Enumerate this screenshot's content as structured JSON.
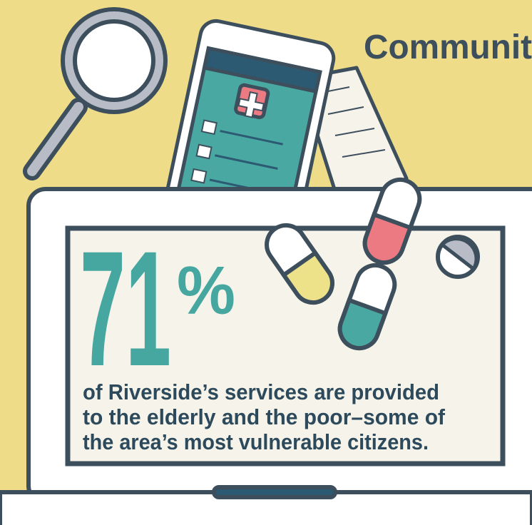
{
  "header": {
    "title": "Communit"
  },
  "stat": {
    "number": "71",
    "unit": "%",
    "description": [
      "of Riverside’s services are provided",
      "to the elderly and the poor–some of",
      "the area’s most vulnerable citizens."
    ]
  }
}
